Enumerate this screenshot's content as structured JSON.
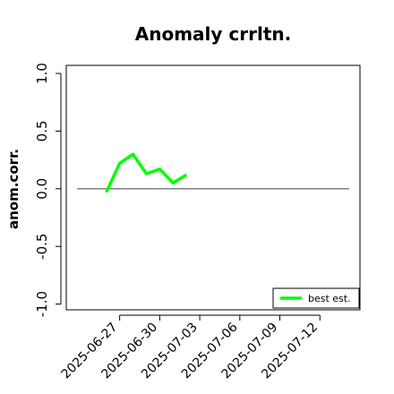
{
  "chart_data": {
    "type": "line",
    "title": "Anomaly crrltn.",
    "xlabel": "",
    "ylabel": "anom.corr.",
    "ylim": [
      -1.05,
      1.07
    ],
    "xlim": [
      "2025-06-23",
      "2025-07-15"
    ],
    "grid": false,
    "reference_line": 0,
    "legend_position": "bottom-right",
    "yticks": [
      "-1.0",
      "-0.5",
      "0.0",
      "0.5",
      "1.0"
    ],
    "xticks": [
      {
        "date": "2025-06-27",
        "label": "2025-06-27",
        "color": "#000000"
      },
      {
        "date": "2025-06-30",
        "label": "2025-06-30",
        "color": "#000000"
      },
      {
        "date": "2025-07-03",
        "label": "2025-07-03",
        "color": "#228B22"
      },
      {
        "date": "2025-07-06",
        "label": "2025-07-06",
        "color": "#000000"
      },
      {
        "date": "2025-07-09",
        "label": "2025-07-09",
        "color": "#000000"
      },
      {
        "date": "2025-07-12",
        "label": "2025-07-12",
        "color": "#000000"
      }
    ],
    "series": [
      {
        "name": "best est.",
        "color": "#00ff00",
        "points": [
          {
            "x": "2025-06-26",
            "y": -0.03
          },
          {
            "x": "2025-06-27",
            "y": 0.22
          },
          {
            "x": "2025-06-28",
            "y": 0.3
          },
          {
            "x": "2025-06-29",
            "y": 0.13
          },
          {
            "x": "2025-06-30",
            "y": 0.17
          },
          {
            "x": "2025-07-01",
            "y": 0.05
          },
          {
            "x": "2025-07-02",
            "y": 0.12
          }
        ]
      }
    ]
  }
}
